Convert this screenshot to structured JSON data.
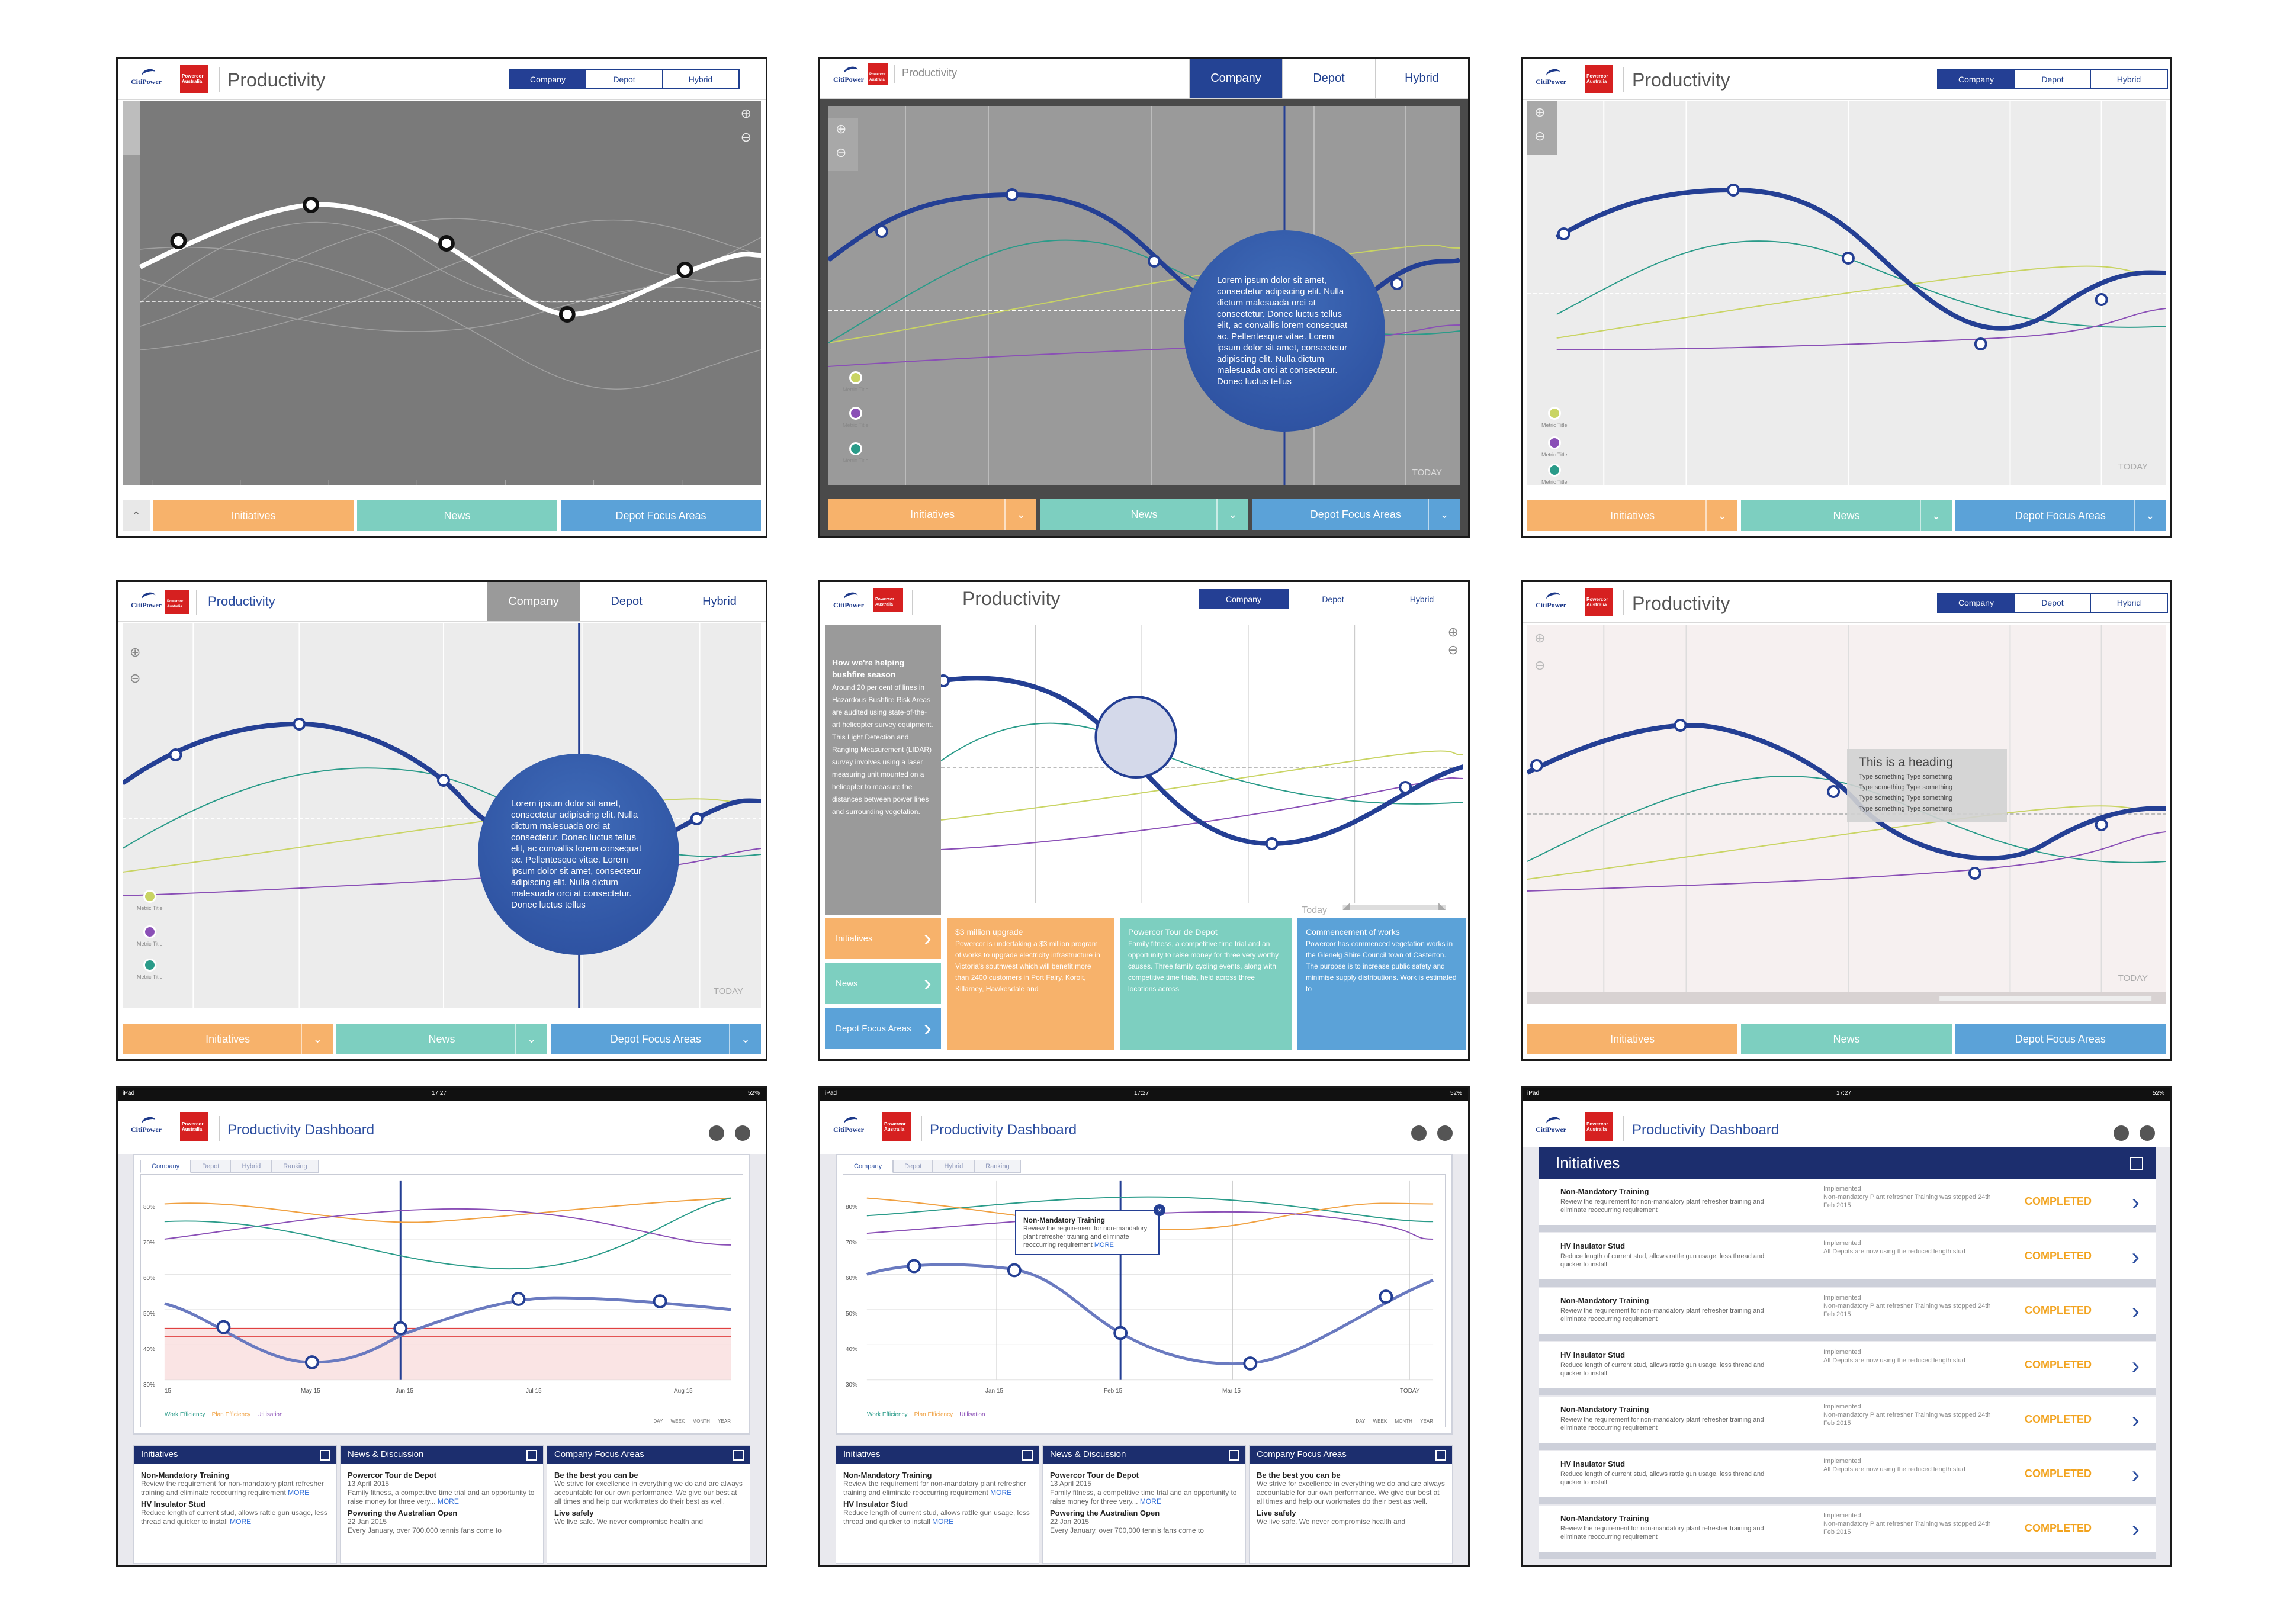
{
  "brand": {
    "logo_primary": "CitiPower",
    "logo_secondary": "Powercor Australia",
    "accent": "#243f94",
    "orange": "#f7b26b",
    "teal": "#7dcfc0",
    "blue": "#5ba2d8"
  },
  "titles": {
    "productivity": "Productivity",
    "dashboard": "Productivity Dashboard"
  },
  "segments": [
    "Company",
    "Depot",
    "Hybrid"
  ],
  "bottom_nav": {
    "initiatives": "Initiatives",
    "news": "News",
    "depot_focus": "Depot Focus Areas"
  },
  "today_upper": "TODAY",
  "today_mixed": "Today",
  "metric_title": "Metric Title",
  "bubble_text": "Lorem ipsum dolor sit amet, consectetur adipiscing elit. Nulla dictum malesuada orci at consectetur. Donec luctus tellus elit, ac convallis lorem consequat ac. Pellentesque vitae. Lorem ipsum dolor sit amet, consectetur adipiscing elit. Nulla dictum malesuada orci at consectetur. Donec luctus tellus",
  "tooltip": {
    "heading": "This is a heading",
    "lines": [
      "Type something Type something",
      "Type something Type something",
      "Type something Type something",
      "Type something Type something"
    ]
  },
  "side_panel": {
    "heading": "How we're helping bushfire season",
    "body": "Around 20 per cent of lines in Hazardous Bushfire Risk Areas are audited using state-of-the-art helicopter survey equipment. This Light Detection and Ranging Measurement (LIDAR) survey involves using a laser measuring unit mounted on a helicopter to measure the distances between power lines and surrounding vegetation."
  },
  "cards": [
    {
      "title": "$3 million upgrade",
      "body": "Powercor is undertaking a $3 million program of works to upgrade electricity infrastructure in Victoria's southwest which will benefit more than 2400 customers in Port Fairy, Koroit, Killarney, Hawkesdale and"
    },
    {
      "title": "Powercor Tour de Depot",
      "body": "Family fitness, a competitive time trial and an opportunity to raise money for three very worthy causes. Three family cycling events, along with competitive time trials, held across three locations across"
    },
    {
      "title": "Commencement of works",
      "body": "Powercor has commenced vegetation works in the Glenelg Shire Council town of Casterton. The purpose is to increase public safety and minimise supply distributions. Work is estimated to"
    }
  ],
  "ipad": {
    "device": "iPad",
    "time": "17:27",
    "battery": "52%"
  },
  "dash_tabs": [
    "Company",
    "Depot",
    "Hybrid",
    "Ranking"
  ],
  "y_ticks": [
    "80%",
    "70%",
    "60%",
    "50%",
    "40%",
    "30%"
  ],
  "x_ticks_a": [
    "15",
    "May 15",
    "Jun 15",
    "Jul 15",
    "Aug 15"
  ],
  "x_ticks_b": [
    "Jan 15",
    "Feb 15",
    "Mar 15",
    "TODAY"
  ],
  "legend": [
    "Work Efficiency",
    "Plan Efficiency",
    "Utilisation"
  ],
  "range": [
    "DAY",
    "WEEK",
    "MONTH",
    "YEAR"
  ],
  "popup": {
    "title": "Non-Mandatory Training",
    "body": "Review the requirement for non-mandatory plant refresher training and eliminate reoccurring requirement",
    "more": "MORE"
  },
  "mini_cards": {
    "initiatives": {
      "title": "Initiatives",
      "i1_title": "Non-Mandatory Training",
      "i1_body": "Review the requirement for non-mandatory plant refresher training and eliminate reoccurring requirement",
      "i2_title": "HV Insulator Stud",
      "i2_body": "Reduce length of current stud, allows rattle gun usage, less thread and quicker to install",
      "more": "MORE"
    },
    "news": {
      "title": "News & Discussion",
      "n1_title": "Powercor Tour de Depot",
      "n1_date": "13 April 2015",
      "n1_body": "Family fitness, a competitive time trial and an opportunity to raise money for three very...",
      "n2_title": "Powering the Australian Open",
      "n2_date": "22 Jan 2015",
      "n2_body": "Every January, over 700,000 tennis fans come to",
      "more": "MORE"
    },
    "focus": {
      "title": "Company Focus Areas",
      "f1_title": "Be the best you can be",
      "f1_body": "We strive for excellence in everything we do and are always accountable for our own performance. We give our best at all times and help our workmates do their best as well.",
      "f2_title": "Live safely",
      "f2_body": "We live safe. We never compromise health and"
    }
  },
  "initiatives_list": {
    "title": "Initiatives",
    "rows": [
      {
        "name": "Non-Mandatory Training",
        "desc": "Review the requirement for non-mandatory plant refresher training and eliminate reoccurring requirement",
        "label": "Implemented",
        "note": "Non-mandatory Plant refresher Training was stopped 24th Feb 2015",
        "status": "COMPLETED"
      },
      {
        "name": "HV Insulator Stud",
        "desc": "Reduce length of current stud, allows rattle gun usage, less thread and quicker to install",
        "label": "Implemented",
        "note": "All Depots are now using the reduced length stud",
        "status": "COMPLETED"
      },
      {
        "name": "Non-Mandatory Training",
        "desc": "Review the requirement for non-mandatory plant refresher training and eliminate reoccurring requirement",
        "label": "Implemented",
        "note": "Non-mandatory Plant refresher Training was stopped 24th Feb 2015",
        "status": "COMPLETED"
      },
      {
        "name": "HV Insulator Stud",
        "desc": "Reduce length of current stud, allows rattle gun usage, less thread and quicker to install",
        "label": "Implemented",
        "note": "All Depots are now using the reduced length stud",
        "status": "COMPLETED"
      },
      {
        "name": "Non-Mandatory Training",
        "desc": "Review the requirement for non-mandatory plant refresher training and eliminate reoccurring requirement",
        "label": "Implemented",
        "note": "Non-mandatory Plant refresher Training was stopped 24th Feb 2015",
        "status": "COMPLETED"
      },
      {
        "name": "HV Insulator Stud",
        "desc": "Reduce length of current stud, allows rattle gun usage, less thread and quicker to install",
        "label": "Implemented",
        "note": "All Depots are now using the reduced length stud",
        "status": "COMPLETED"
      },
      {
        "name": "Non-Mandatory Training",
        "desc": "Review the requirement for non-mandatory plant refresher training and eliminate reoccurring requirement",
        "label": "Implemented",
        "note": "Non-mandatory Plant refresher Training was stopped 24th Feb 2015",
        "status": "COMPLETED"
      }
    ]
  }
}
